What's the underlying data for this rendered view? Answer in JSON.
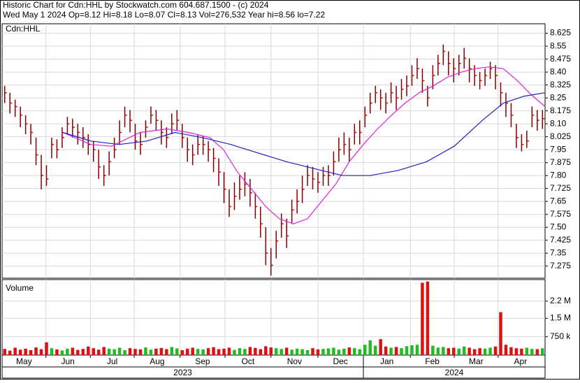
{
  "chart_data": {
    "type": "ohlc",
    "title": "Historic Chart for Cdn:HHL by Stockwatch.com 604.687.1500 - (c) 2024",
    "subtitle": "Wed May  1 2024  Op=8.12 Hi=8.18 Lo=8.07 Cl=8.13 Vol=276,532 Year hi=8.56 lo=7.22",
    "symbol": "Cdn:HHL",
    "volume_label": "Volume",
    "xlim": [
      0,
      104
    ],
    "ylim": [
      7.205,
      8.68
    ],
    "yticks": [
      7.275,
      7.35,
      7.425,
      {
        "value": 7.5,
        "label": "7.50"
      },
      7.575,
      7.65,
      7.725,
      {
        "value": 7.8,
        "label": "7.80"
      },
      7.875,
      7.95,
      8.025,
      {
        "value": 8.1,
        "label": "8.10"
      },
      8.175,
      8.25,
      8.325,
      {
        "value": 8.4,
        "label": "8.40"
      },
      8.475,
      8.55,
      8.625
    ],
    "xgrid": [
      8.4,
      16.9,
      25.3,
      34.1,
      42.7,
      51.5,
      60.5,
      69.2,
      78.2,
      86.6,
      95
    ],
    "month_labels": [
      {
        "value": 4.2,
        "label": "May"
      },
      {
        "value": 12.6,
        "label": "Jun"
      },
      {
        "value": 21.1,
        "label": "Jul"
      },
      {
        "value": 29.7,
        "label": "Aug"
      },
      {
        "value": 38.4,
        "label": "Sep"
      },
      {
        "value": 47.1,
        "label": "Oct"
      },
      {
        "value": 56,
        "label": "Nov"
      },
      {
        "value": 64.8,
        "label": "Dec"
      },
      {
        "value": 73.7,
        "label": "Jan"
      },
      {
        "value": 82.4,
        "label": "Feb"
      },
      {
        "value": 90.8,
        "label": "Mar"
      },
      {
        "value": 99.3,
        "label": "Apr"
      }
    ],
    "year_labels": [
      {
        "value": 34.6,
        "label": "2023"
      },
      {
        "value": 86.6,
        "label": "2024"
      }
    ],
    "year_lines": [
      69.2
    ],
    "price": {
      "color": "#800000",
      "tick_color": "#dd0000",
      "high": [
        8.32,
        8.28,
        8.24,
        8.2,
        8.15,
        8.1,
        8.02,
        7.92,
        7.86,
        8.02,
        8.01,
        8.08,
        8.14,
        8.13,
        8.1,
        8.08,
        8.04,
        8.0,
        7.95,
        7.86,
        7.94,
        8.02,
        8.12,
        8.2,
        8.18,
        8.1,
        8.05,
        8.12,
        8.2,
        8.18,
        8.12,
        8.08,
        8.16,
        8.18,
        8.1,
        8.02,
        7.98,
        8.04,
        8.03,
        8.0,
        7.96,
        7.9,
        7.82,
        7.72,
        7.76,
        7.8,
        7.82,
        7.78,
        7.7,
        7.62,
        7.5,
        7.38,
        7.48,
        7.58,
        7.55,
        7.66,
        7.72,
        7.8,
        7.86,
        7.85,
        7.82,
        7.85,
        7.86,
        7.94,
        8.02,
        8.05,
        8.02,
        8.1,
        8.12,
        8.2,
        8.28,
        8.32,
        8.3,
        8.28,
        8.34,
        8.32,
        8.36,
        8.38,
        8.44,
        8.48,
        8.42,
        8.32,
        8.44,
        8.5,
        8.56,
        8.52,
        8.48,
        8.5,
        8.54,
        8.48,
        8.44,
        8.4,
        8.42,
        8.46,
        8.44,
        8.34,
        8.28,
        8.22,
        8.1,
        8.04,
        8.06,
        8.2,
        8.18,
        8.18
      ],
      "low": [
        8.22,
        8.16,
        8.14,
        8.08,
        8.04,
        7.98,
        7.86,
        7.72,
        7.74,
        7.9,
        7.9,
        7.96,
        8.04,
        8.02,
        7.98,
        7.96,
        7.92,
        7.88,
        7.78,
        7.74,
        7.8,
        7.9,
        7.98,
        8.08,
        8.05,
        7.95,
        7.92,
        8.02,
        8.1,
        8.06,
        7.98,
        7.96,
        8.04,
        8.06,
        7.96,
        7.88,
        7.86,
        7.92,
        7.92,
        7.88,
        7.82,
        7.74,
        7.64,
        7.56,
        7.6,
        7.66,
        7.68,
        7.62,
        7.55,
        7.44,
        7.28,
        7.22,
        7.32,
        7.44,
        7.38,
        7.52,
        7.58,
        7.64,
        7.74,
        7.72,
        7.7,
        7.74,
        7.74,
        7.8,
        7.88,
        7.92,
        7.88,
        7.98,
        7.98,
        8.08,
        8.16,
        8.22,
        8.18,
        8.16,
        8.22,
        8.18,
        8.24,
        8.26,
        8.32,
        8.36,
        8.28,
        8.2,
        8.3,
        8.38,
        8.44,
        8.38,
        8.34,
        8.38,
        8.42,
        8.34,
        8.32,
        8.3,
        8.32,
        8.36,
        8.3,
        8.2,
        8.14,
        8.08,
        7.96,
        7.94,
        7.96,
        8.08,
        8.06,
        8.07
      ],
      "close": [
        8.28,
        8.22,
        8.2,
        8.15,
        8.1,
        8.05,
        7.92,
        7.8,
        7.78,
        7.98,
        7.95,
        8.02,
        8.1,
        8.08,
        8.05,
        8.02,
        7.98,
        7.95,
        7.85,
        7.8,
        7.88,
        7.95,
        8.05,
        8.15,
        8.12,
        8.0,
        7.98,
        8.08,
        8.15,
        8.12,
        8.05,
        8.02,
        8.1,
        8.12,
        8.02,
        7.95,
        7.92,
        7.98,
        7.98,
        7.95,
        7.9,
        7.82,
        7.72,
        7.62,
        7.68,
        7.72,
        7.75,
        7.7,
        7.62,
        7.52,
        7.35,
        7.28,
        7.42,
        7.52,
        7.45,
        7.6,
        7.65,
        7.72,
        7.8,
        7.78,
        7.76,
        7.8,
        7.8,
        7.88,
        7.95,
        7.98,
        7.95,
        8.05,
        8.05,
        8.15,
        8.22,
        8.28,
        8.25,
        8.22,
        8.28,
        8.25,
        8.3,
        8.32,
        8.38,
        8.42,
        8.35,
        8.25,
        8.38,
        8.45,
        8.52,
        8.45,
        8.42,
        8.45,
        8.48,
        8.42,
        8.38,
        8.35,
        8.38,
        8.42,
        8.38,
        8.28,
        8.22,
        8.15,
        8.02,
        7.98,
        8.0,
        8.15,
        8.12,
        8.13
      ]
    },
    "moving_averages": [
      {
        "color": "#e020e0",
        "x": [
          11.6,
          17.0,
          21.0,
          26.4,
          31.7,
          35.7,
          39.8,
          42.4,
          45.1,
          47.8,
          50.5,
          53.1,
          55.8,
          58.5,
          61.2,
          63.9,
          66.5,
          69.2,
          71.9,
          74.6,
          77.2,
          79.9,
          82.6,
          85.3,
          88.0,
          90.6,
          93.3,
          96.0,
          98.7,
          101.3,
          104.0
        ],
        "values": [
          8.05,
          7.98,
          7.97,
          8.05,
          8.07,
          8.05,
          8.02,
          7.95,
          7.82,
          7.72,
          7.62,
          7.55,
          7.52,
          7.55,
          7.65,
          7.75,
          7.88,
          7.98,
          8.07,
          8.15,
          8.22,
          8.28,
          8.32,
          8.37,
          8.4,
          8.42,
          8.43,
          8.42,
          8.35,
          8.27,
          8.2
        ]
      },
      {
        "color": "#2020c0",
        "x": [
          11.6,
          17.0,
          22.4,
          27.7,
          33.1,
          38.4,
          43.8,
          49.1,
          54.5,
          59.8,
          65.2,
          70.5,
          75.9,
          81.3,
          86.6,
          92.0,
          96.0,
          100.0,
          104.0
        ],
        "values": [
          8.05,
          8.0,
          7.98,
          8.0,
          8.05,
          8.02,
          7.98,
          7.93,
          7.88,
          7.84,
          7.8,
          7.8,
          7.83,
          7.88,
          7.97,
          8.12,
          8.22,
          8.26,
          8.28
        ]
      }
    ],
    "volume": {
      "up_color": "#22bb22",
      "down_color": "#dd1111",
      "ylim": [
        0,
        3080000
      ],
      "yticks": [
        {
          "value": 2200000,
          "label": "2.2 M"
        },
        {
          "value": 1500000,
          "label": "1.5 M"
        },
        {
          "value": 750000,
          "label": "750 k"
        }
      ],
      "values": [
        250000,
        180000,
        300000,
        220000,
        260000,
        200000,
        310000,
        240000,
        520000,
        280000,
        230000,
        190000,
        260000,
        300000,
        210000,
        250000,
        350000,
        280000,
        220000,
        330000,
        260000,
        240000,
        300000,
        200000,
        280000,
        250000,
        230000,
        310000,
        220000,
        260000,
        290000,
        240000,
        330000,
        270000,
        200000,
        260000,
        300000,
        250000,
        230000,
        280000,
        320000,
        240000,
        260000,
        300000,
        210000,
        280000,
        250000,
        330000,
        290000,
        240000,
        360000,
        310000,
        280000,
        250000,
        300000,
        220000,
        260000,
        240000,
        200000,
        280000,
        230000,
        250000,
        270000,
        300000,
        220000,
        260000,
        310000,
        280000,
        240000,
        420000,
        600000,
        380000,
        650000,
        350000,
        300000,
        330000,
        280000,
        360000,
        400000,
        420000,
        2950000,
        3000000,
        380000,
        300000,
        330000,
        280000,
        300000,
        260000,
        350000,
        300000,
        240000,
        280000,
        260000,
        300000,
        350000,
        1750000,
        420000,
        320000,
        280000,
        260000,
        300000,
        250000,
        240000,
        276532
      ]
    }
  }
}
